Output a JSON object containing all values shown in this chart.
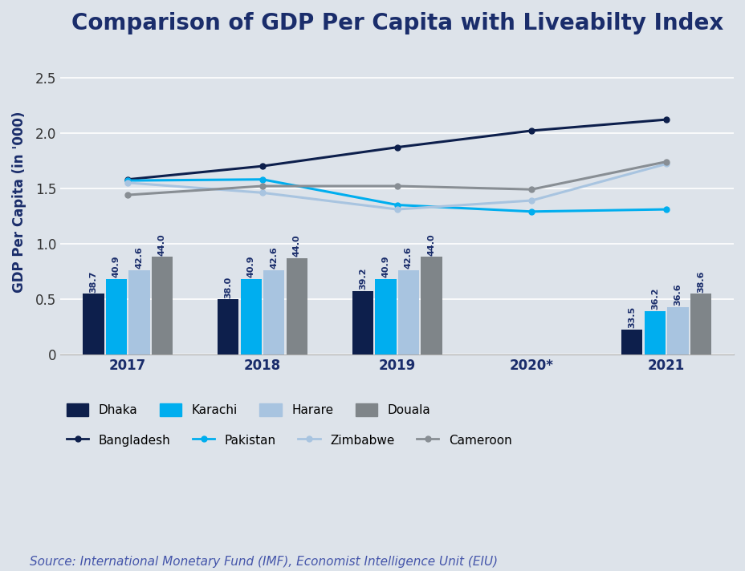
{
  "title": "Comparison of GDP Per Capita with Liveabilty Index",
  "ylabel": "GDP Per Capita (in '000)",
  "source": "Source: International Monetary Fund (IMF), Economist Intelligence Unit (EIU)",
  "background_color": "#dde3ea",
  "plot_bg_color": "#dde3ea",
  "years": [
    "2017",
    "2018",
    "2019",
    "2020*",
    "2021"
  ],
  "bar_groups": {
    "2017": {
      "Dhaka": 0.548,
      "Karachi": 0.682,
      "Harare": 0.762,
      "Douala": 0.88
    },
    "2018": {
      "Dhaka": 0.498,
      "Karachi": 0.682,
      "Harare": 0.762,
      "Douala": 0.87
    },
    "2019": {
      "Dhaka": 0.572,
      "Karachi": 0.682,
      "Harare": 0.762,
      "Douala": 0.88
    },
    "2021": {
      "Dhaka": 0.228,
      "Karachi": 0.392,
      "Harare": 0.43,
      "Douala": 0.548
    }
  },
  "bar_labels": {
    "2017": {
      "Dhaka": "38.7",
      "Karachi": "40.9",
      "Harare": "42.6",
      "Douala": "44.0"
    },
    "2018": {
      "Dhaka": "38.0",
      "Karachi": "40.9",
      "Harare": "42.6",
      "Douala": "44.0"
    },
    "2019": {
      "Dhaka": "39.2",
      "Karachi": "40.9",
      "Harare": "42.6",
      "Douala": "44.0"
    },
    "2021": {
      "Dhaka": "33.5",
      "Karachi": "36.2",
      "Harare": "36.6",
      "Douala": "38.6"
    }
  },
  "bar_colors": {
    "Dhaka": "#0d1f4c",
    "Karachi": "#00aeef",
    "Harare": "#a8c4e0",
    "Douala": "#7f8589"
  },
  "lines": {
    "Bangladesh": {
      "color": "#0d1f4c",
      "values": [
        1.58,
        1.7,
        1.87,
        2.02,
        2.12
      ]
    },
    "Pakistan": {
      "color": "#00aeef",
      "values": [
        1.57,
        1.58,
        1.35,
        1.29,
        1.31
      ]
    },
    "Zimbabwe": {
      "color": "#a8c4e0",
      "values": [
        1.55,
        1.46,
        1.31,
        1.39,
        1.72
      ]
    },
    "Cameroon": {
      "color": "#888e94",
      "values": [
        1.44,
        1.52,
        1.52,
        1.49,
        1.74
      ]
    }
  },
  "line_x": [
    0,
    1,
    2,
    3,
    4
  ],
  "ylim": [
    0,
    2.75
  ],
  "yticks": [
    0,
    0.5,
    1.0,
    1.5,
    2.0,
    2.5
  ],
  "title_fontsize": 20,
  "axis_label_fontsize": 12,
  "tick_fontsize": 12,
  "legend_fontsize": 11,
  "source_fontsize": 11
}
